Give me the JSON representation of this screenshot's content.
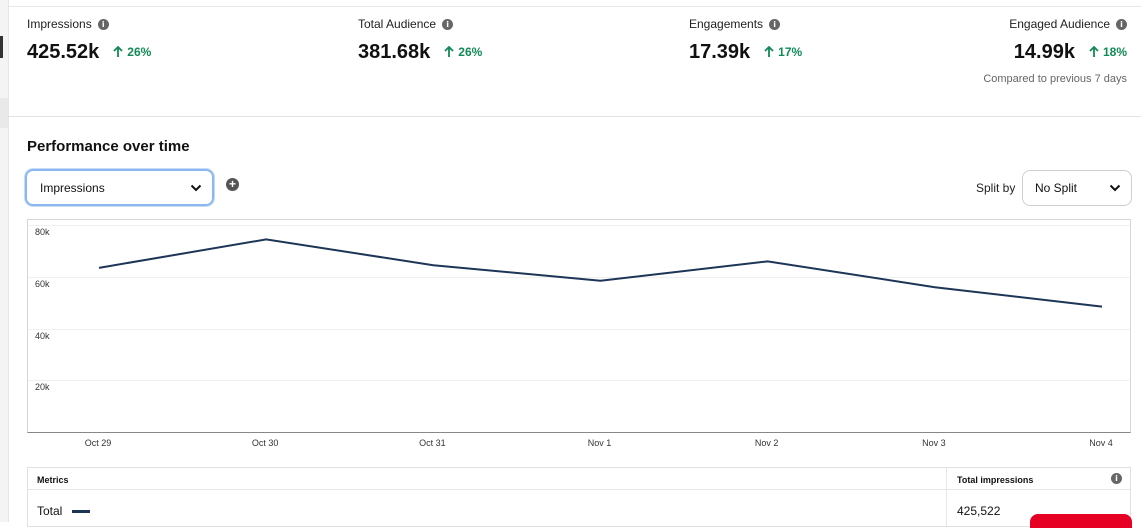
{
  "stats": [
    {
      "label": "Impressions",
      "value": "425.52k",
      "delta": "26%"
    },
    {
      "label": "Total Audience",
      "value": "381.68k",
      "delta": "26%"
    },
    {
      "label": "Engagements",
      "value": "17.39k",
      "delta": "17%"
    },
    {
      "label": "Engaged Audience",
      "value": "14.99k",
      "delta": "18%"
    }
  ],
  "compare_note": "Compared to previous 7 days",
  "performance": {
    "title": "Performance over time",
    "metric_select": "Impressions",
    "split_label": "Split by",
    "split_value": "No Split"
  },
  "colors": {
    "accent_green": "#118a55",
    "line": "#1d3557",
    "focus_blue": "#8ab8ee",
    "brand_red": "#e60023"
  },
  "chart_data": {
    "type": "line",
    "categories": [
      "Oct 29",
      "Oct 30",
      "Oct 31",
      "Nov 1",
      "Nov 2",
      "Nov 3",
      "Nov 4"
    ],
    "series": [
      {
        "name": "Total",
        "values": [
          63500,
          74500,
          64500,
          58500,
          66000,
          56000,
          48500
        ]
      }
    ],
    "yticks": [
      "80k",
      "60k",
      "40k",
      "20k"
    ],
    "ytick_values": [
      80000,
      60000,
      40000,
      20000
    ],
    "ylim": [
      0,
      82000
    ],
    "title": "",
    "xlabel": "",
    "ylabel": ""
  },
  "table": {
    "col_metrics": "Metrics",
    "col_total": "Total impressions",
    "row_label": "Total",
    "row_value": "425,522"
  }
}
